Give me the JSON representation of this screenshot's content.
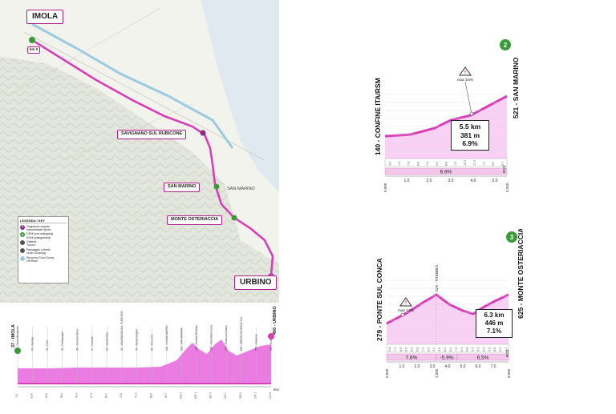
{
  "map": {
    "start_city": "IMOLA",
    "finish_city": "URBINO",
    "km0": "km 0",
    "places": {
      "savignano": "SAVIGNANO SUL RUBICONE",
      "san_marino": "SAN MARINO",
      "monte_osteriaccia": "MONTE OSTERIACCIA",
      "san_marino_area": "SAN MARINO"
    },
    "legend": {
      "title": "LEGENDA / KEY",
      "items": [
        {
          "label": "Traguardo volante\nIntermediate Sprint",
          "color": "#8b2a8b",
          "glyph": "S"
        },
        {
          "label": "GPM (con categoria)\nKOM (categorized)",
          "color": "#3a9a3a",
          "glyph": "▲"
        },
        {
          "label": "Galleria\nTunnel",
          "color": "#555555",
          "glyph": ""
        },
        {
          "label": "Passaggio a livello\nLevel Crossing",
          "color": "#555555",
          "glyph": ""
        },
        {
          "label": "Percorso Fuori Corsa\nOff Race",
          "color": "#9ccbe0",
          "glyph": ""
        }
      ]
    }
  },
  "climb1": {
    "max_label": "max 15%",
    "badge": "2",
    "left_name": "140 - CONFINE ITA/RSM",
    "right_name": "521 - SAN MARINO",
    "stat_length": "5.5 km",
    "stat_gain": "381 m",
    "stat_grad": "6.9%",
    "avg_bar": "6.9%",
    "segment_grads": [
      "3.0",
      "1.4",
      "7.8",
      "6.6",
      "7.6",
      "2.9",
      "8.8",
      "7.5",
      "10.2",
      "11.2",
      "7.2",
      "5.5",
      "8.1"
    ],
    "x_ticks": [
      "0.000",
      "1.0",
      "2.0",
      "3.0",
      "4.0",
      "5.0",
      "5.550"
    ],
    "watermark": "RCS"
  },
  "climb2": {
    "max_label": "max 12%",
    "badge": "3",
    "left_name": "279 - PONTE SUL CONCA",
    "right_name": "625 - MONTE OSTERIACCIA",
    "peak_name": "529 - TREBBIO",
    "stat_length": "6.3 km",
    "stat_gain": "446 m",
    "stat_grad": "7.1%",
    "avg_bars": [
      "7.6%",
      "-5.9%",
      "6.5%"
    ],
    "segment_grads": [
      "6.8",
      "7.4",
      "8.9",
      "6.6",
      "8.4",
      "6.8",
      "7.2",
      "6.6",
      "4.2",
      "3.5",
      "8.2",
      "5.2",
      "7.6",
      "6.4",
      "6.8",
      "3.3",
      "5.4",
      "5.5",
      "4.5",
      "8.6",
      "9.3",
      "4.1"
    ],
    "x_ticks": [
      "0.000",
      "1.0",
      "2.0",
      "3.0",
      "3.300",
      "4.0",
      "5.0",
      "6.0",
      "7.0",
      "8.000"
    ],
    "watermark": "RCS"
  },
  "stage_profile": {
    "start_label": "37 - IMOLA",
    "finish_label": "450 - URBINO",
    "places": [
      "40 - Castel Bolognese",
      "33 - Faenza",
      "34 - Forlì",
      "32 - Forlimpopoli",
      "36 - Torre del Moro",
      "37 - Cesena",
      "30 - Gambettola",
      "32 - SAVIGNANO SUL RUBICONE",
      "40 - Santarcangelo",
      "81 - Verucchio",
      "140 - Confine Ita/RSM",
      "521 - SAN MARINO",
      "450 - Confine RSM/Ita",
      "230 - Mercatino Conca",
      "279 - Ponte sul Conca",
      "625 - MONTE OSTERIACCIA",
      "265 - Casinina",
      "349 - Schieti"
    ],
    "km": [
      "0.0",
      "13.6",
      "22.6",
      "38.4",
      "49.3",
      "57.3",
      "63.7",
      "71.0",
      "79.1",
      "88.6",
      "96.7",
      "102.2",
      "109.1",
      "114.3",
      "120.7",
      "128.0",
      "134.3",
      "144.6"
    ],
    "watermark": "RCS"
  },
  "colors": {
    "route": "#d63fb6",
    "badge_green": "#3a9a3a",
    "profile_fill": "#ea7be0",
    "avg_bar": "#f4c6ea"
  }
}
